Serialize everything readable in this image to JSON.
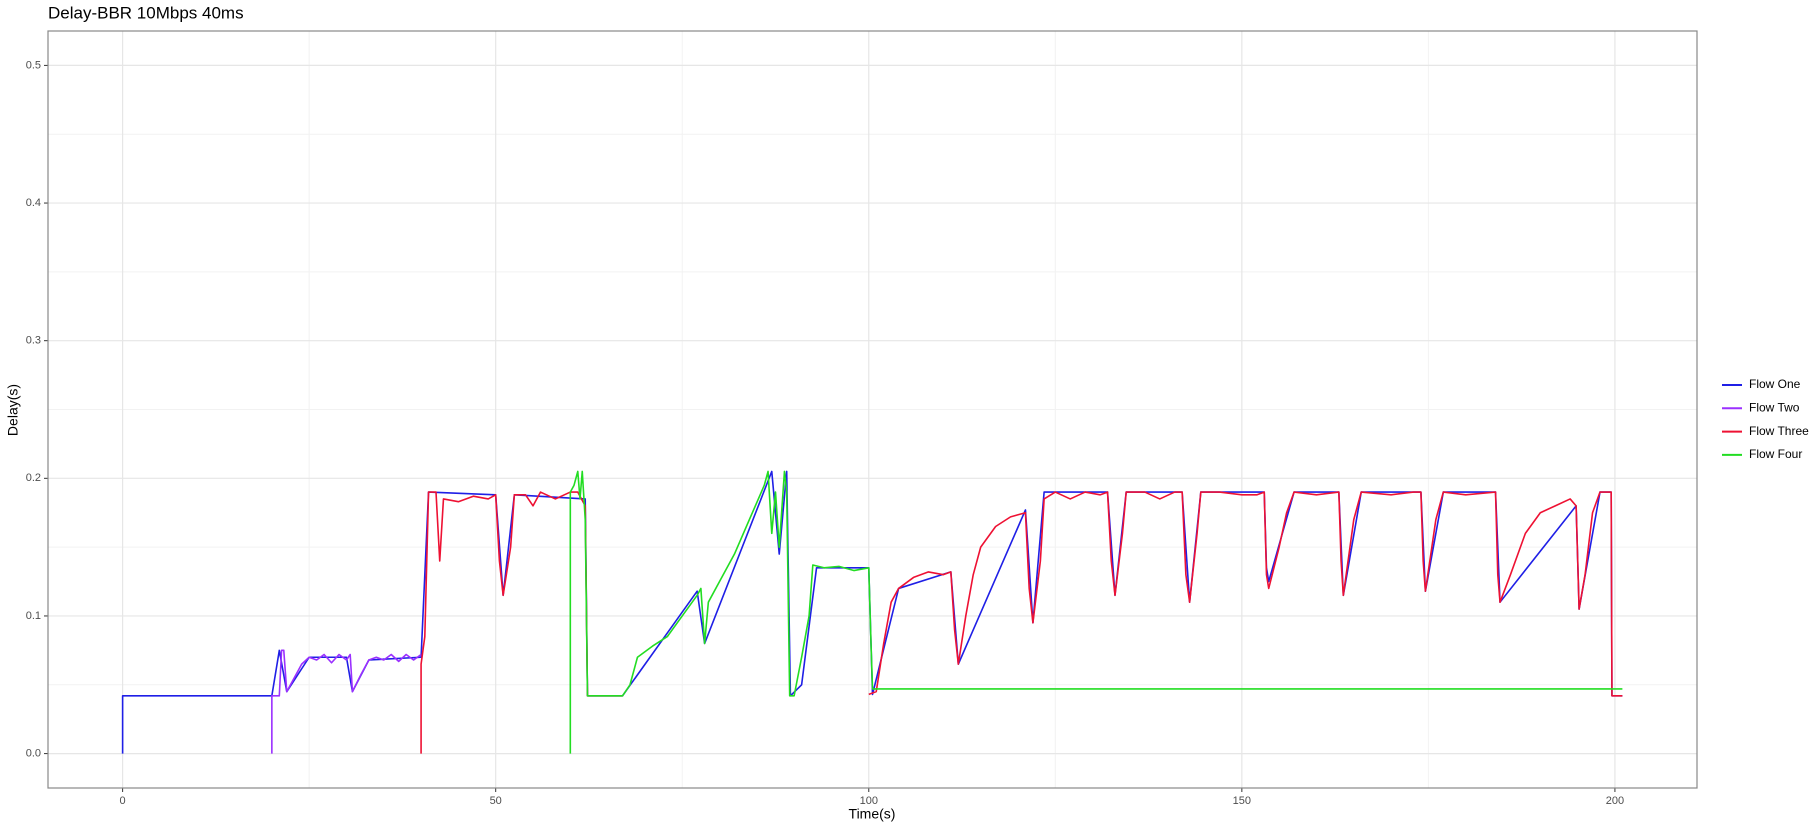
{
  "chart_data": {
    "type": "line",
    "title": "Delay-BBR 10Mbps 40ms",
    "x_label": "Time(s)",
    "y_label": "Delay(s)",
    "xlim": [
      -10,
      211
    ],
    "ylim": [
      -0.025,
      0.525
    ],
    "xticks": [
      0,
      50,
      100,
      150,
      200
    ],
    "yticks": [
      {
        "value": 0,
        "label": "0.0"
      },
      0.1,
      0.2,
      0.3,
      0.4,
      0.5
    ],
    "grid": true,
    "legend": "right",
    "series": [
      {
        "name": "Flow One",
        "color": "#1f1fe6",
        "x": [
          0,
          0,
          20,
          21,
          22,
          25,
          30,
          30.8,
          33,
          40,
          41,
          50,
          51,
          52.5,
          62,
          62.3,
          67,
          77,
          78,
          87,
          88,
          89,
          89.5,
          91,
          93,
          100,
          100.5,
          104,
          111,
          112,
          121,
          122,
          123.5,
          132,
          133,
          134.5,
          142,
          143,
          144.5,
          153,
          153.3,
          153.6,
          157,
          163,
          163.6,
          166,
          174,
          174.6,
          177,
          184,
          184.6,
          194.8,
          195.2,
          198,
          199.5,
          199.6,
          201
        ],
        "values": [
          0,
          0.042,
          0.042,
          0.075,
          0.045,
          0.07,
          0.07,
          0.045,
          0.068,
          0.07,
          0.19,
          0.188,
          0.115,
          0.188,
          0.185,
          0.042,
          0.042,
          0.118,
          0.08,
          0.205,
          0.145,
          0.205,
          0.042,
          0.05,
          0.135,
          0.135,
          0.043,
          0.12,
          0.132,
          0.065,
          0.177,
          0.095,
          0.19,
          0.19,
          0.115,
          0.19,
          0.19,
          0.11,
          0.19,
          0.19,
          0.135,
          0.125,
          0.19,
          0.19,
          0.115,
          0.19,
          0.19,
          0.118,
          0.19,
          0.19,
          0.11,
          0.18,
          0.105,
          0.19,
          0.19,
          0.042,
          0.042
        ]
      },
      {
        "name": "Flow Two",
        "color": "#9b30ff",
        "x": [
          20,
          20,
          21,
          21.3,
          21.6,
          22,
          23,
          24,
          25,
          26,
          27,
          28,
          29,
          30,
          30.5,
          30.8,
          32,
          33,
          34,
          35,
          36,
          37,
          38,
          39,
          40
        ],
        "values": [
          0,
          0.042,
          0.042,
          0.075,
          0.075,
          0.045,
          0.055,
          0.065,
          0.07,
          0.068,
          0.072,
          0.066,
          0.072,
          0.068,
          0.072,
          0.045,
          0.058,
          0.068,
          0.07,
          0.068,
          0.072,
          0.067,
          0.072,
          0.068,
          0.072
        ]
      },
      {
        "name": "Flow Three",
        "color": "#ee1133",
        "x": [
          40,
          40,
          40.5,
          41,
          42,
          42.5,
          43,
          45,
          47,
          49,
          50,
          50.5,
          51,
          52,
          52.5,
          54,
          55,
          56,
          58,
          60,
          61,
          62,
          62.3,
          67,
          null,
          100,
          101,
          102,
          103,
          104,
          106,
          108,
          110,
          111,
          111.5,
          112,
          113,
          114,
          115,
          117,
          119,
          121,
          121.5,
          122,
          123,
          123.5,
          125,
          127,
          129,
          131,
          132,
          132.5,
          133,
          134,
          134.5,
          137,
          139,
          141,
          142,
          142.5,
          143,
          144,
          144.5,
          147,
          150,
          152,
          153,
          153.3,
          153.6,
          155,
          156,
          157,
          160,
          163,
          163.3,
          163.6,
          165,
          166,
          170,
          173,
          174,
          174.3,
          174.6,
          176,
          177,
          180,
          184,
          184.3,
          184.6,
          186,
          188,
          190,
          192,
          194,
          194.8,
          195.2,
          196,
          197,
          198,
          199,
          199.5,
          199.6,
          201
        ],
        "values": [
          0,
          0.065,
          0.085,
          0.19,
          0.19,
          0.14,
          0.185,
          0.183,
          0.187,
          0.185,
          0.188,
          0.14,
          0.115,
          0.15,
          0.188,
          0.188,
          0.18,
          0.19,
          0.185,
          0.19,
          0.19,
          0.18,
          0.042,
          0.042,
          null,
          0.043,
          0.045,
          0.08,
          0.11,
          0.12,
          0.128,
          0.132,
          0.13,
          0.132,
          0.09,
          0.065,
          0.1,
          0.13,
          0.15,
          0.165,
          0.172,
          0.175,
          0.12,
          0.095,
          0.14,
          0.185,
          0.19,
          0.185,
          0.19,
          0.188,
          0.19,
          0.14,
          0.115,
          0.16,
          0.19,
          0.19,
          0.185,
          0.19,
          0.19,
          0.13,
          0.11,
          0.16,
          0.19,
          0.19,
          0.188,
          0.188,
          0.19,
          0.13,
          0.12,
          0.15,
          0.175,
          0.19,
          0.188,
          0.19,
          0.14,
          0.115,
          0.17,
          0.19,
          0.188,
          0.19,
          0.19,
          0.14,
          0.118,
          0.17,
          0.19,
          0.188,
          0.19,
          0.13,
          0.11,
          0.13,
          0.16,
          0.175,
          0.18,
          0.185,
          0.18,
          0.105,
          0.13,
          0.175,
          0.19,
          0.19,
          0.19,
          0.042,
          0.042
        ]
      },
      {
        "name": "Flow Four",
        "color": "#22dd22",
        "x": [
          60,
          60,
          60.5,
          61,
          61.3,
          61.6,
          62,
          62.3,
          67,
          68,
          69,
          71,
          73,
          75,
          77,
          77.5,
          78,
          78.5,
          80,
          82,
          84,
          86,
          86.5,
          87,
          87.5,
          88,
          88.7,
          89,
          89.4,
          90,
          91,
          92,
          92.5,
          94,
          96,
          98,
          100,
          100.3,
          100.5,
          201
        ],
        "values": [
          0,
          0.19,
          0.195,
          0.205,
          0.185,
          0.205,
          0.17,
          0.042,
          0.042,
          0.05,
          0.07,
          0.078,
          0.085,
          0.1,
          0.115,
          0.12,
          0.08,
          0.11,
          0.125,
          0.145,
          0.17,
          0.195,
          0.205,
          0.16,
          0.19,
          0.15,
          0.205,
          0.19,
          0.042,
          0.042,
          0.07,
          0.1,
          0.137,
          0.135,
          0.136,
          0.133,
          0.135,
          0.08,
          0.047,
          0.047
        ]
      }
    ]
  }
}
